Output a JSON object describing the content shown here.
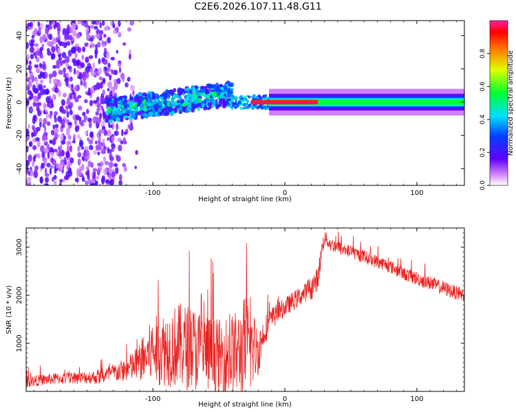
{
  "title": "C2E6.2026.107.11.48.G11",
  "chart_data": [
    {
      "type": "heatmap",
      "title": "C2E6.2026.107.11.48.G11",
      "xlabel": "Height of straight line (km)",
      "ylabel": "Frequency (Hz)",
      "xlim": [
        -196,
        136
      ],
      "ylim": [
        -50,
        49
      ],
      "xticks": [
        -100,
        0,
        100
      ],
      "yticks": [
        -40,
        -20,
        0,
        20,
        40
      ],
      "xtick_labels": [
        "-100",
        "0",
        "100"
      ],
      "ytick_labels": [
        "-40",
        "-20",
        "0",
        "20",
        "40"
      ],
      "colorbar": {
        "label": "Normalized spectral amplitude",
        "range": [
          0,
          1
        ],
        "ticks": [
          0.0,
          0.2,
          0.4,
          0.6,
          0.8
        ],
        "tick_labels": [
          "0.0",
          "0.2",
          "0.4",
          "0.6",
          "0.8"
        ]
      },
      "description_regions": [
        {
          "x_from": -196,
          "x_to": -120,
          "freq_center": 0,
          "freq_spread": 50,
          "amplitude": 0.15,
          "pattern": "scattered noise"
        },
        {
          "x_from": -135,
          "x_to": -40,
          "freq_center_from": -5,
          "freq_center_to": 8,
          "amplitude": 0.35,
          "pattern": "rising band"
        },
        {
          "x_from": -40,
          "x_to": -5,
          "freq_center": 0,
          "amplitude": 0.5,
          "pattern": "converging band"
        },
        {
          "x_from": -25,
          "x_to": 25,
          "freq_center": 0,
          "amplitude": 0.95,
          "pattern": "peak at carrier"
        },
        {
          "x_from": 25,
          "x_to": 136,
          "freq_center": 0,
          "amplitude": 0.45,
          "pattern": "steady narrow band"
        }
      ]
    },
    {
      "type": "line",
      "xlabel": "Height of straight line (km)",
      "ylabel": "SNR (10 * v/v)",
      "xlim": [
        -196,
        136
      ],
      "ylim": [
        0,
        3400
      ],
      "xticks": [
        -100,
        0,
        100
      ],
      "yticks": [
        1000,
        2000,
        3000
      ],
      "xtick_labels": [
        "-100",
        "0",
        "100"
      ],
      "ytick_labels": [
        "1000",
        "2000",
        "3000"
      ],
      "series": [
        {
          "name": "SNR",
          "color": "#e8201e",
          "x": [
            -196,
            -180,
            -160,
            -140,
            -130,
            -120,
            -110,
            -100,
            -90,
            -80,
            -70,
            -60,
            -50,
            -40,
            -35,
            -30,
            -25,
            -20,
            -15,
            -10,
            -5,
            0,
            5,
            10,
            15,
            20,
            25,
            28,
            30,
            35,
            40,
            50,
            60,
            70,
            80,
            90,
            100,
            110,
            120,
            130,
            136
          ],
          "y": [
            200,
            250,
            280,
            300,
            380,
            450,
            600,
            850,
            900,
            950,
            900,
            800,
            700,
            750,
            800,
            950,
            900,
            850,
            1300,
            1500,
            1650,
            1750,
            1850,
            1950,
            2050,
            2150,
            2350,
            2950,
            3200,
            3050,
            3000,
            2900,
            2800,
            2700,
            2600,
            2450,
            2350,
            2250,
            2150,
            2050,
            2000
          ],
          "noise_amplitude": [
            120,
            120,
            120,
            150,
            200,
            250,
            400,
            700,
            800,
            900,
            900,
            850,
            800,
            900,
            900,
            1100,
            900,
            500,
            300,
            250,
            200,
            200,
            200,
            200,
            200,
            250,
            250,
            200,
            150,
            150,
            150,
            140,
            140,
            140,
            140,
            140,
            150,
            150,
            150,
            150,
            150
          ]
        }
      ]
    }
  ]
}
